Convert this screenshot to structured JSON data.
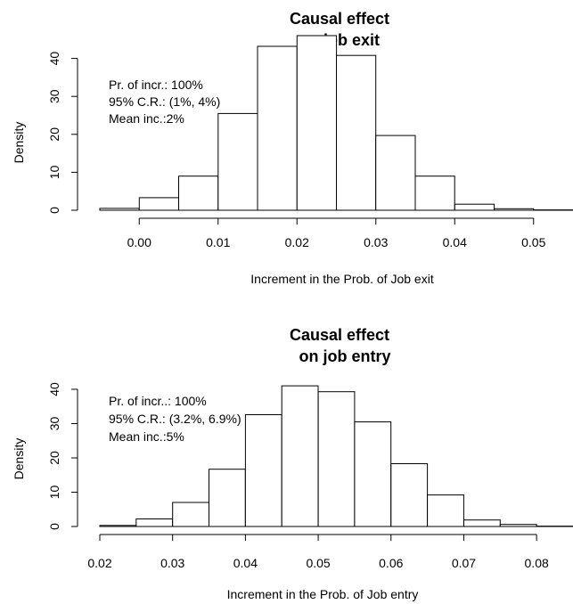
{
  "chart_data": [
    {
      "type": "bar",
      "title_lines": [
        "Causal effect",
        "on job exit"
      ],
      "xlabel": "Increment in the Prob. of Job exit",
      "ylabel": "Density",
      "xlim": [
        -0.005,
        0.055
      ],
      "ylim": [
        0,
        45
      ],
      "x_ticks": [
        0.0,
        0.01,
        0.02,
        0.03,
        0.04,
        0.05
      ],
      "x_tick_labels": [
        "0.00",
        "0.01",
        "0.02",
        "0.03",
        "0.04",
        "0.05"
      ],
      "y_ticks": [
        0,
        10,
        20,
        30,
        40
      ],
      "y_tick_labels": [
        "0",
        "10",
        "20",
        "30",
        "40"
      ],
      "bin_width": 0.005,
      "bin_starts": [
        -0.005,
        0.0,
        0.005,
        0.01,
        0.015,
        0.02,
        0.025,
        0.03,
        0.035,
        0.04,
        0.045,
        0.05
      ],
      "values": [
        0.5,
        3.3,
        9.0,
        25.5,
        43.2,
        46.0,
        40.8,
        19.7,
        9.0,
        1.6,
        0.4,
        0.1
      ],
      "annotations": [
        "Pr. of incr.: 100%",
        "95% C.R.: (1%, 4%)",
        "Mean inc.:2%"
      ]
    },
    {
      "type": "bar",
      "title_lines": [
        "Causal effect",
        "on job entry"
      ],
      "xlabel": "Increment in the Prob. of Job entry",
      "ylabel": "Density",
      "xlim": [
        0.02,
        0.085
      ],
      "ylim": [
        0,
        42
      ],
      "x_ticks": [
        0.02,
        0.03,
        0.04,
        0.05,
        0.06,
        0.07,
        0.08
      ],
      "x_tick_labels": [
        "0.02",
        "0.03",
        "0.04",
        "0.05",
        "0.06",
        "0.07",
        "0.08"
      ],
      "y_ticks": [
        0,
        10,
        20,
        30,
        40
      ],
      "y_tick_labels": [
        "0",
        "10",
        "20",
        "30",
        "40"
      ],
      "bin_width": 0.005,
      "bin_starts": [
        0.02,
        0.025,
        0.03,
        0.035,
        0.04,
        0.045,
        0.05,
        0.055,
        0.06,
        0.065,
        0.07,
        0.075,
        0.08
      ],
      "values": [
        0.3,
        2.2,
        7.0,
        16.7,
        32.6,
        41.0,
        39.3,
        30.5,
        18.3,
        9.2,
        1.9,
        0.6,
        0.1
      ],
      "annotations": [
        "Pr. of incr..: 100%",
        "95% C.R.: (3.2%, 6.9%)",
        "Mean inc.:5%"
      ]
    }
  ]
}
